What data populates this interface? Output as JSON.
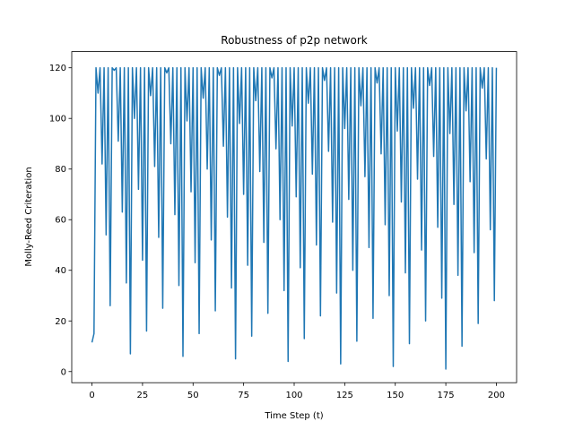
{
  "chart_data": {
    "type": "line",
    "title": "Robustness of p2p network",
    "xlabel": "Time Step (t)",
    "ylabel": "Molly-Reed Criteration",
    "color": "#1f77b4",
    "x": [
      0,
      1,
      2,
      3,
      4,
      5,
      6,
      7,
      8,
      9,
      10,
      11,
      12,
      13,
      14,
      15,
      16,
      17,
      18,
      19,
      20,
      21,
      22,
      23,
      24,
      25,
      26,
      27,
      28,
      29,
      30,
      31,
      32,
      33,
      34,
      35,
      36,
      37,
      38,
      39,
      40,
      41,
      42,
      43,
      44,
      45,
      46,
      47,
      48,
      49,
      50,
      51,
      52,
      53,
      54,
      55,
      56,
      57,
      58,
      59,
      60,
      61,
      62,
      63,
      64,
      65,
      66,
      67,
      68,
      69,
      70,
      71,
      72,
      73,
      74,
      75,
      76,
      77,
      78,
      79,
      80,
      81,
      82,
      83,
      84,
      85,
      86,
      87,
      88,
      89,
      90,
      91,
      92,
      93,
      94,
      95,
      96,
      97,
      98,
      99,
      100,
      101,
      102,
      103,
      104,
      105,
      106,
      107,
      108,
      109,
      110,
      111,
      112,
      113,
      114,
      115,
      116,
      117,
      118,
      119,
      120,
      121,
      122,
      123,
      124,
      125,
      126,
      127,
      128,
      129,
      130,
      131,
      132,
      133,
      134,
      135,
      136,
      137,
      138,
      139,
      140,
      141,
      142,
      143,
      144,
      145,
      146,
      147,
      148,
      149,
      150,
      151,
      152,
      153,
      154,
      155,
      156,
      157,
      158,
      159,
      160,
      161,
      162,
      163,
      164,
      165,
      166,
      167,
      168,
      169,
      170,
      171,
      172,
      173,
      174,
      175,
      176,
      177,
      178,
      179,
      180,
      181,
      182,
      183,
      184,
      185,
      186,
      187,
      188,
      189,
      190,
      191,
      192,
      193,
      194,
      195,
      196,
      197,
      198,
      199,
      200
    ],
    "values": [
      11.5,
      15,
      120,
      110,
      120,
      82,
      120,
      54,
      120,
      26,
      120,
      119,
      120,
      91,
      120,
      63,
      120,
      35,
      120,
      7,
      120,
      100,
      120,
      72,
      120,
      44,
      120,
      16,
      120,
      109,
      120,
      81,
      120,
      53,
      120,
      25,
      120,
      118,
      120,
      90,
      120,
      62,
      120,
      34,
      120,
      6,
      120,
      99,
      120,
      71,
      120,
      43,
      120,
      15,
      120,
      108,
      120,
      80,
      120,
      52,
      120,
      24,
      120,
      117,
      120,
      89,
      120,
      61,
      120,
      33,
      120,
      5,
      120,
      98,
      120,
      70,
      120,
      42,
      120,
      14,
      120,
      107,
      120,
      79,
      120,
      51,
      120,
      23,
      120,
      116,
      120,
      88,
      120,
      60,
      120,
      32,
      120,
      4,
      120,
      97,
      120,
      69,
      120,
      41,
      120,
      13,
      120,
      106,
      120,
      78,
      120,
      50,
      120,
      22,
      120,
      115,
      120,
      87,
      120,
      59,
      120,
      31,
      120,
      3,
      120,
      96,
      120,
      68,
      120,
      40,
      120,
      12,
      120,
      105,
      120,
      77,
      120,
      49,
      120,
      21,
      120,
      114,
      120,
      86,
      120,
      58,
      120,
      30,
      120,
      2,
      120,
      95,
      120,
      67,
      120,
      39,
      120,
      11,
      120,
      104,
      120,
      76,
      120,
      48,
      120,
      20,
      120,
      113,
      120,
      85,
      120,
      57,
      120,
      29,
      120,
      1,
      120,
      94,
      120,
      66,
      120,
      38,
      120,
      10,
      120,
      103,
      120,
      75,
      120,
      47,
      120,
      19,
      120,
      112,
      120,
      84,
      120,
      56,
      120,
      28,
      120
    ],
    "xlim": [
      -10,
      210
    ],
    "xticks": [
      0,
      25,
      50,
      75,
      100,
      125,
      150,
      175,
      200
    ],
    "ylim": [
      -4.4,
      126.4
    ],
    "yticks": [
      0,
      20,
      40,
      60,
      80,
      100,
      120
    ]
  }
}
